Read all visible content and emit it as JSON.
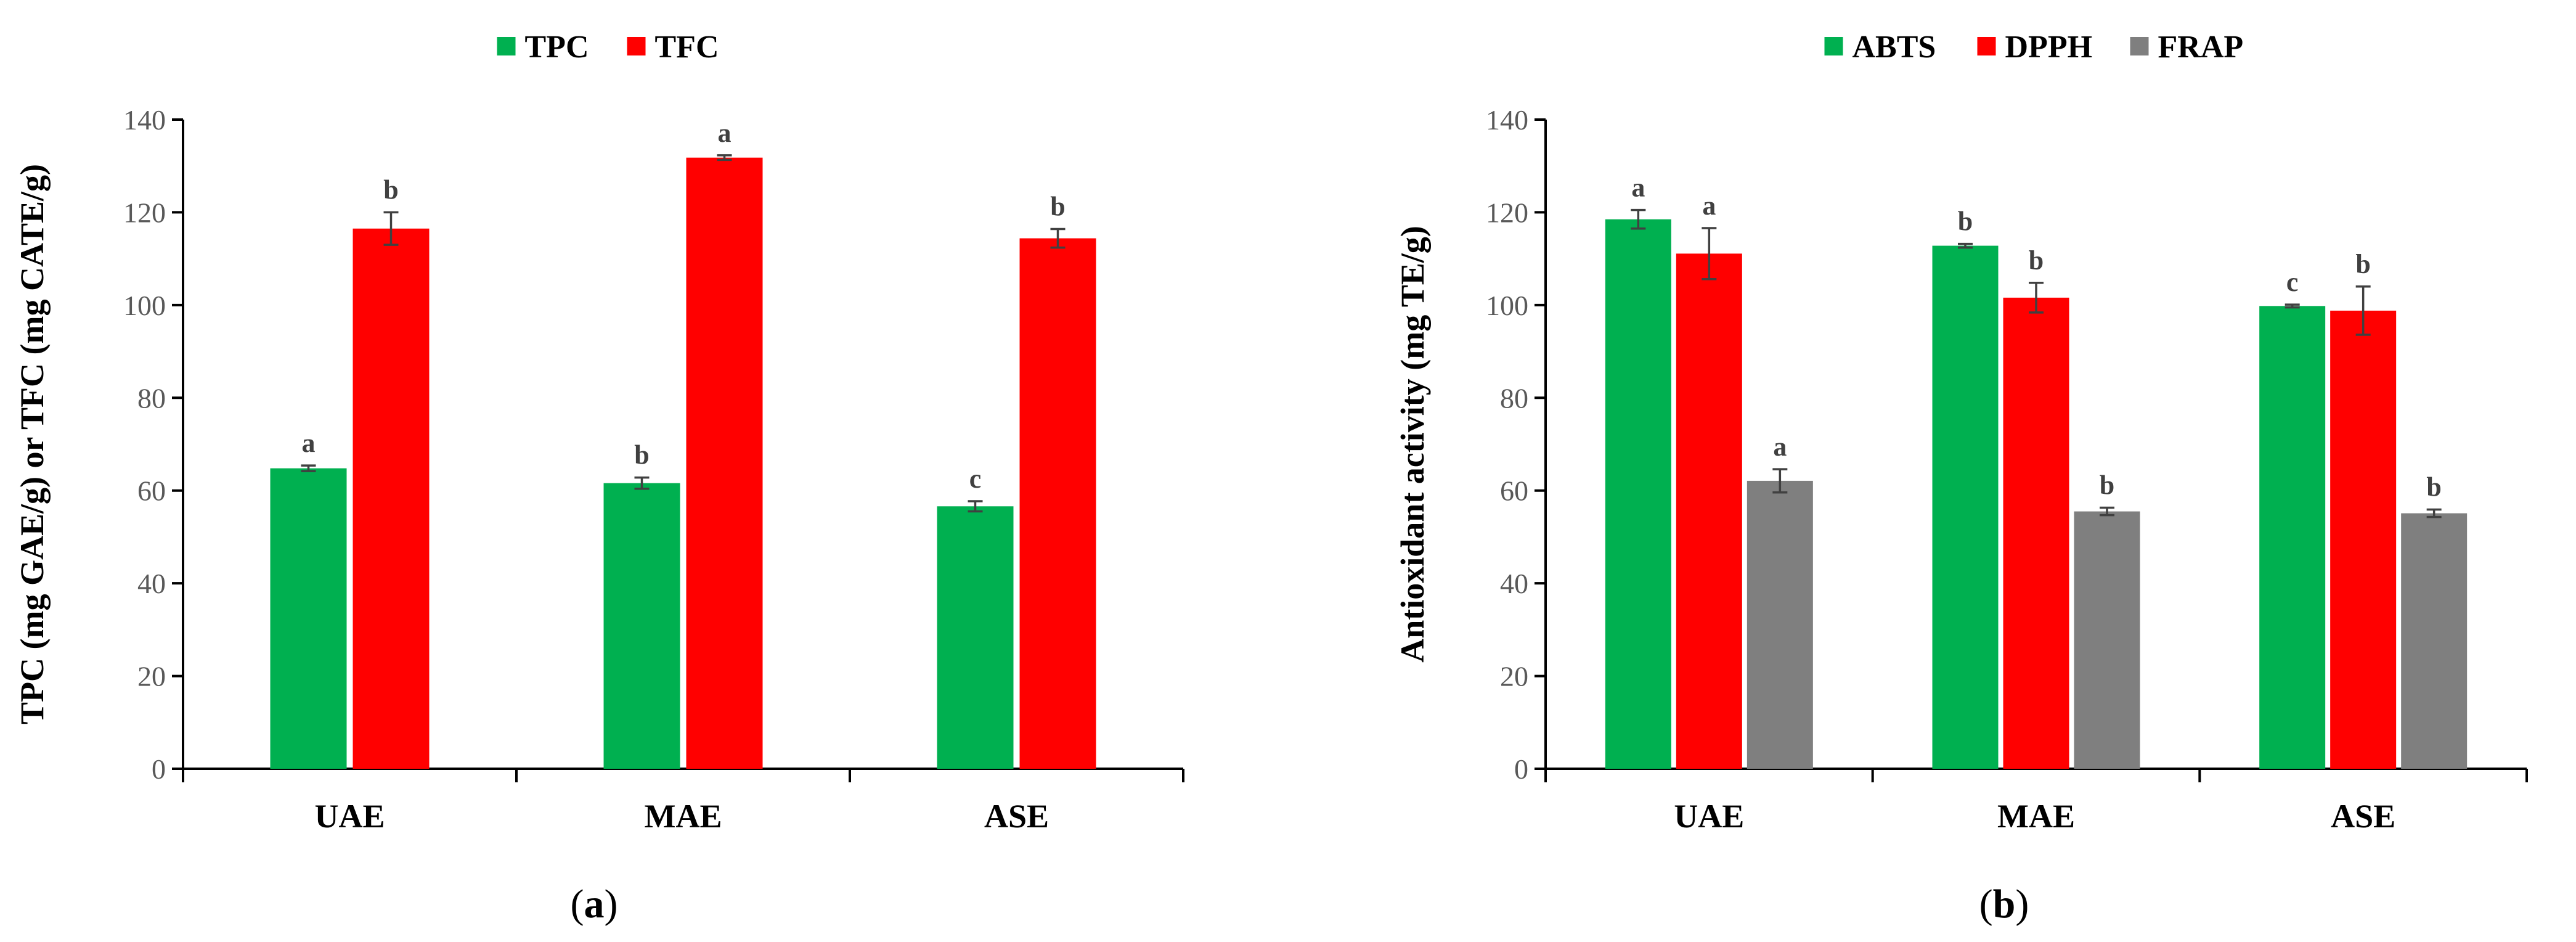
{
  "chart_data": [
    {
      "type": "bar",
      "panel_label": "a",
      "categories": [
        "UAE",
        "MAE",
        "ASE"
      ],
      "series": [
        {
          "name": "TPC",
          "color": "#00B050",
          "values": [
            64.8,
            61.6,
            56.6
          ],
          "errors": [
            0.6,
            1.2,
            1.1
          ],
          "letters": [
            "a",
            "b",
            "c"
          ]
        },
        {
          "name": "TFC",
          "color": "#FF0000",
          "values": [
            116.5,
            131.8,
            114.4
          ],
          "errors": [
            3.5,
            0.5,
            2.0
          ],
          "letters": [
            "b",
            "a",
            "b"
          ]
        }
      ],
      "ylabel": "TPC (mg GAE/g) or TFC (mg CATE/g)",
      "xlabel": "",
      "ylim": [
        0,
        140
      ],
      "yticks": [
        0,
        20,
        40,
        60,
        80,
        100,
        120,
        140
      ],
      "legend": "top-center",
      "grid": false
    },
    {
      "type": "bar",
      "panel_label": "b",
      "categories": [
        "UAE",
        "MAE",
        "ASE"
      ],
      "series": [
        {
          "name": "ABTS",
          "color": "#00B050",
          "values": [
            118.5,
            112.8,
            99.8
          ],
          "errors": [
            2.0,
            0.4,
            0.3
          ],
          "letters": [
            "a",
            "b",
            "c"
          ]
        },
        {
          "name": "DPPH",
          "color": "#FF0000",
          "values": [
            111.1,
            101.6,
            98.8
          ],
          "errors": [
            5.5,
            3.2,
            5.2
          ],
          "letters": [
            "a",
            "b",
            "b"
          ]
        },
        {
          "name": "FRAP",
          "color": "#7F7F7F",
          "values": [
            62.1,
            55.5,
            55.1
          ],
          "errors": [
            2.5,
            0.8,
            0.8
          ],
          "letters": [
            "a",
            "b",
            "b"
          ]
        }
      ],
      "ylabel": "Antioxidant activity (mg TE/g)",
      "xlabel": "",
      "ylim": [
        0,
        140
      ],
      "yticks": [
        0,
        20,
        40,
        60,
        80,
        100,
        120,
        140
      ],
      "legend": "top-center",
      "grid": false
    }
  ]
}
